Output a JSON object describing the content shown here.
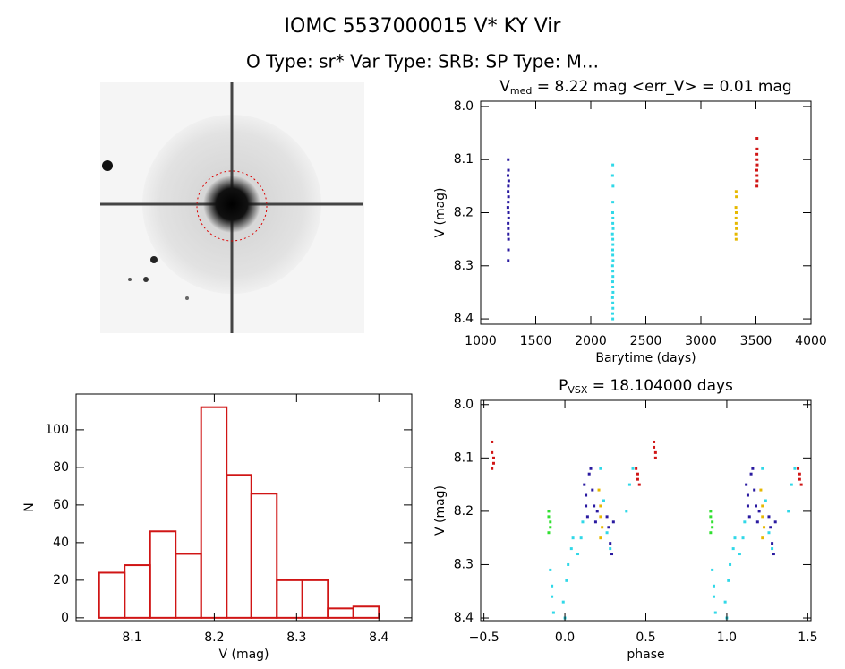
{
  "header": {
    "title": "IOMC 5537000015     V* KY Vir",
    "subtitle": "O Type: sr*  Var Type: SRB:  SP Type: M..."
  },
  "chart_data": [
    {
      "type": "scatter",
      "title": {
        "main": "V",
        "sub": "med",
        "rest": " = 8.22 mag <err_V> = 0.01 mag"
      },
      "xlabel": "Barytime (days)",
      "ylabel": "V (mag)",
      "xlim": [
        1000,
        4000
      ],
      "xticks": [
        1000,
        1500,
        2000,
        2500,
        3000,
        3500,
        4000
      ],
      "ylim": [
        8.41,
        7.99
      ],
      "yticks": [
        {
          "value": 8.0,
          "label": "8.0"
        },
        8.1,
        8.2,
        8.3,
        8.4
      ],
      "series": [
        {
          "color": "#2a1aa0",
          "x": [
            1250,
            1252,
            1248,
            1255,
            1251,
            1249,
            1253,
            1250,
            1247,
            1252,
            1254,
            1249,
            1251,
            1250,
            1253,
            1252,
            1250
          ],
          "y": [
            8.1,
            8.12,
            8.13,
            8.14,
            8.15,
            8.16,
            8.17,
            8.18,
            8.19,
            8.2,
            8.21,
            8.22,
            8.23,
            8.24,
            8.25,
            8.27,
            8.29
          ]
        },
        {
          "color": "#30d8e8",
          "x": [
            2200,
            2198,
            2202,
            2200,
            2199,
            2201,
            2200,
            2203,
            2197,
            2200,
            2201,
            2199,
            2200,
            2202,
            2198,
            2200,
            2201,
            2199,
            2200,
            2202,
            2198,
            2200,
            2201,
            2199,
            2200
          ],
          "y": [
            8.11,
            8.13,
            8.15,
            8.18,
            8.2,
            8.21,
            8.22,
            8.23,
            8.24,
            8.25,
            8.26,
            8.27,
            8.28,
            8.29,
            8.3,
            8.31,
            8.32,
            8.33,
            8.34,
            8.35,
            8.36,
            8.37,
            8.38,
            8.39,
            8.4
          ]
        },
        {
          "color": "#e6b800",
          "x": [
            3320,
            3322,
            3318,
            3321,
            3319,
            3320,
            3322,
            3318,
            3320
          ],
          "y": [
            8.16,
            8.17,
            8.19,
            8.2,
            8.21,
            8.22,
            8.23,
            8.24,
            8.25
          ]
        },
        {
          "color": "#d01515",
          "x": [
            3510,
            3511,
            3509,
            3510,
            3512,
            3508,
            3510,
            3511,
            3509
          ],
          "y": [
            8.06,
            8.08,
            8.09,
            8.1,
            8.11,
            8.12,
            8.13,
            8.14,
            8.15
          ]
        }
      ]
    },
    {
      "type": "histogram",
      "xlabel": "V (mag)",
      "ylabel": "N",
      "bins": [
        8.06,
        8.091,
        8.122,
        8.153,
        8.184,
        8.215,
        8.245,
        8.276,
        8.307,
        8.338,
        8.369,
        8.4
      ],
      "values": [
        24,
        28,
        46,
        34,
        112,
        76,
        66,
        20,
        20,
        5,
        6
      ],
      "color": "#d01515",
      "xlim": [
        8.032,
        8.44
      ],
      "xticks": [
        8.1,
        8.2,
        8.3,
        8.4
      ],
      "ylim": [
        -1.5,
        119
      ],
      "yticks": [
        0,
        20,
        40,
        60,
        80,
        100
      ]
    },
    {
      "type": "scatter",
      "title": {
        "main": "P",
        "sub": "VSX",
        "rest": " = 18.104000 days"
      },
      "xlabel": "phase",
      "ylabel": "V (mag)",
      "xlim": [
        -0.52,
        1.52
      ],
      "xticks": [
        {
          "value": -0.5,
          "label": "−0.5"
        },
        {
          "value": 0.0,
          "label": "0.0"
        },
        0.5,
        {
          "value": 1.0,
          "label": "1.0"
        },
        1.5
      ],
      "ylim": [
        8.405,
        7.992
      ],
      "yticks": [
        {
          "value": 8.0,
          "label": "8.0"
        },
        8.1,
        8.2,
        8.3,
        8.4
      ],
      "series": [
        {
          "color": "#2a1aa0",
          "x": [
            0.12,
            0.13,
            0.13,
            0.14,
            0.15,
            0.16,
            0.17,
            0.18,
            0.19,
            0.2,
            0.26,
            0.27,
            0.28,
            0.29,
            0.3,
            1.12,
            1.13,
            1.13,
            1.14,
            1.15,
            1.16,
            1.17,
            1.18,
            1.19,
            1.2,
            1.26,
            1.27,
            1.28,
            1.29,
            1.3
          ],
          "y": [
            8.15,
            8.17,
            8.19,
            8.21,
            8.13,
            8.12,
            8.16,
            8.19,
            8.22,
            8.2,
            8.21,
            8.23,
            8.26,
            8.28,
            8.22,
            8.15,
            8.17,
            8.19,
            8.21,
            8.13,
            8.12,
            8.16,
            8.19,
            8.22,
            8.2,
            8.21,
            8.23,
            8.26,
            8.28,
            8.22
          ]
        },
        {
          "color": "#30d8e8",
          "x": [
            -0.09,
            -0.08,
            -0.08,
            -0.07,
            -0.01,
            0.0,
            0.01,
            0.02,
            0.04,
            0.05,
            0.08,
            0.1,
            0.11,
            0.22,
            0.24,
            0.26,
            0.28,
            0.38,
            0.4,
            0.42,
            0.91,
            0.92,
            0.92,
            0.93,
            0.99,
            1.0,
            1.01,
            1.02,
            1.04,
            1.05,
            1.08,
            1.1,
            1.11,
            1.22,
            1.24,
            1.26,
            1.28,
            1.38,
            1.4,
            1.42
          ],
          "y": [
            8.31,
            8.34,
            8.36,
            8.39,
            8.37,
            8.4,
            8.33,
            8.3,
            8.27,
            8.25,
            8.28,
            8.25,
            8.22,
            8.12,
            8.18,
            8.24,
            8.27,
            8.2,
            8.15,
            8.12,
            8.31,
            8.34,
            8.36,
            8.39,
            8.37,
            8.4,
            8.33,
            8.3,
            8.27,
            8.25,
            8.28,
            8.25,
            8.22,
            8.12,
            8.18,
            8.24,
            8.27,
            8.2,
            8.15,
            8.12
          ]
        },
        {
          "color": "#30e030",
          "x": [
            -0.1,
            -0.1,
            -0.09,
            -0.09,
            -0.1,
            0.9,
            0.9,
            0.91,
            0.91,
            0.9
          ],
          "y": [
            8.2,
            8.21,
            8.22,
            8.23,
            8.24,
            8.2,
            8.21,
            8.22,
            8.23,
            8.24
          ]
        },
        {
          "color": "#e6b800",
          "x": [
            0.21,
            0.22,
            0.22,
            0.23,
            0.22,
            1.21,
            1.22,
            1.22,
            1.23,
            1.22
          ],
          "y": [
            8.16,
            8.19,
            8.21,
            8.23,
            8.25,
            8.16,
            8.19,
            8.21,
            8.23,
            8.25
          ]
        },
        {
          "color": "#d01515",
          "x": [
            -0.45,
            -0.45,
            -0.44,
            -0.44,
            -0.45,
            0.44,
            0.45,
            0.45,
            0.46,
            0.55,
            0.55,
            0.56,
            0.56,
            1.44,
            1.45,
            1.45,
            1.46
          ],
          "y": [
            8.07,
            8.09,
            8.1,
            8.11,
            8.12,
            8.12,
            8.13,
            8.14,
            8.15,
            8.07,
            8.08,
            8.09,
            8.1,
            8.12,
            8.13,
            8.14,
            8.15
          ]
        }
      ]
    }
  ]
}
